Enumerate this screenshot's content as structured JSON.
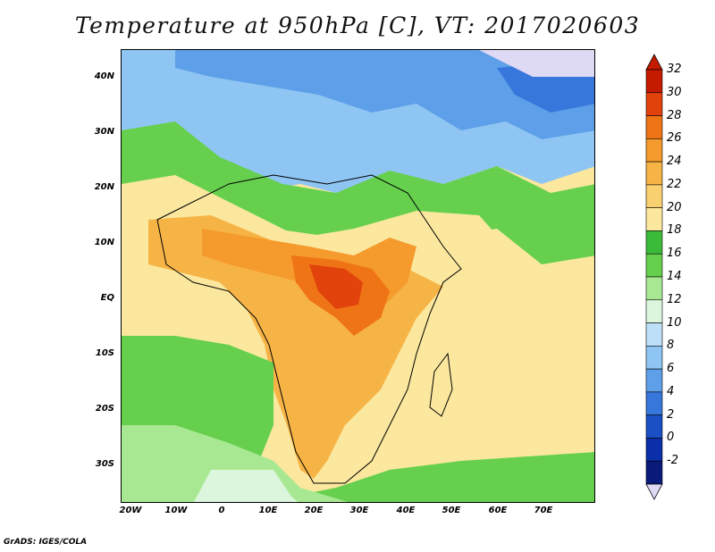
{
  "title": "Temperature at 950hPa [C], VT: 2017020603",
  "credit": "GrADS: IGES/COLA",
  "map": {
    "lat_labels": [
      "40N",
      "30N",
      "20N",
      "10N",
      "EQ",
      "10S",
      "20S",
      "30S"
    ],
    "lon_labels": [
      "20W",
      "10W",
      "0",
      "10E",
      "20E",
      "30E",
      "40E",
      "50E",
      "60E",
      "70E"
    ]
  },
  "colorbar": {
    "labels": [
      "32",
      "30",
      "28",
      "26",
      "24",
      "22",
      "20",
      "18",
      "16",
      "14",
      "12",
      "10",
      "8",
      "6",
      "4",
      "2",
      "0",
      "-2"
    ],
    "colors": [
      "#c41a00",
      "#e2420b",
      "#ef7416",
      "#f59a2c",
      "#f7b446",
      "#f9d06f",
      "#fbe79e",
      "#3cbb3a",
      "#66d04e",
      "#a9e892",
      "#dcf6dd",
      "#bde0f8",
      "#8fc5f2",
      "#5d9fe8",
      "#3776db",
      "#1a4fc6",
      "#0b2fa8",
      "#0a1a7a"
    ],
    "top_arrow_color": "#c41a00",
    "bottom_arrow_color": "#ded9f5"
  }
}
